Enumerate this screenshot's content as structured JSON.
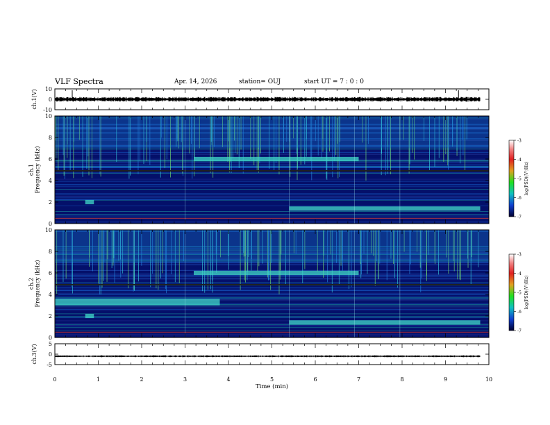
{
  "header": {
    "title": "VLF Spectra",
    "date": "Apr. 14, 2026",
    "station": "station= OUJ",
    "start": "start  UT =   7 : 0  : 0"
  },
  "chart_data": {
    "type": "heatmap",
    "title": "VLF Spectra",
    "xlabel": "Time  (min)",
    "xlim": [
      0,
      10
    ],
    "xticks": [
      "0",
      "1",
      "2",
      "3",
      "4",
      "5",
      "6",
      "7",
      "8",
      "9",
      "10"
    ],
    "panels": [
      {
        "id": "ch1-waveform",
        "type": "line",
        "ylabel": "ch.1(V)",
        "ylim": [
          -10,
          10
        ],
        "yticks": [
          "10",
          "0",
          "-10"
        ],
        "baseline": 0,
        "amplitude": 1.5
      },
      {
        "id": "ch1-spectrogram",
        "type": "heatmap",
        "ylabel": "ch.1\nFrequency  (kHz)",
        "ylim": [
          0,
          10
        ],
        "yticks": [
          "0",
          "2",
          "4",
          "6",
          "8",
          "10"
        ],
        "colorbar": {
          "label": "log(PSD)(V²/Hz)",
          "range": [
            -7,
            -3
          ],
          "ticks": [
            "-3",
            "-4",
            "-5",
            "-6",
            "-7"
          ]
        },
        "features": [
          {
            "name": "noise band",
            "t": [
              3.2,
              7.0
            ],
            "f": [
              5.8,
              6.2
            ]
          },
          {
            "name": "noise band",
            "t": [
              5.4,
              9.8
            ],
            "f": [
              1.2,
              1.6
            ]
          },
          {
            "name": "emission",
            "t": [
              0.7,
              0.9
            ],
            "f": [
              1.8,
              2.2
            ]
          }
        ]
      },
      {
        "id": "ch2-spectrogram",
        "type": "heatmap",
        "ylabel": "ch.2\nFrequency  (kHz)",
        "ylim": [
          0,
          10
        ],
        "yticks": [
          "0",
          "2",
          "4",
          "6",
          "8",
          "10"
        ],
        "colorbar": {
          "label": "log(PSD)(V²/Hz)",
          "range": [
            -7,
            -3
          ],
          "ticks": [
            "-3",
            "-4",
            "-5",
            "-6",
            "-7"
          ]
        },
        "features": [
          {
            "name": "noise band",
            "t": [
              3.2,
              7.0
            ],
            "f": [
              5.8,
              6.2
            ]
          },
          {
            "name": "noise band",
            "t": [
              0.0,
              3.8
            ],
            "f": [
              3.0,
              3.6
            ]
          },
          {
            "name": "noise band",
            "t": [
              5.4,
              9.8
            ],
            "f": [
              1.2,
              1.6
            ]
          },
          {
            "name": "emission",
            "t": [
              0.7,
              0.9
            ],
            "f": [
              1.8,
              2.2
            ]
          }
        ]
      },
      {
        "id": "ch3-waveform",
        "type": "line",
        "ylabel": "ch.3(V)",
        "ylim": [
          -5,
          5
        ],
        "yticks": [
          "5",
          "0",
          "-5"
        ],
        "baseline": -1,
        "amplitude": 0.3
      }
    ],
    "colors": {
      "colormap": [
        "#ffffff",
        "#e03020",
        "#f0a020",
        "#20e030",
        "#10c0c0",
        "#1040d0",
        "#000040"
      ],
      "background": "#04106a"
    }
  }
}
